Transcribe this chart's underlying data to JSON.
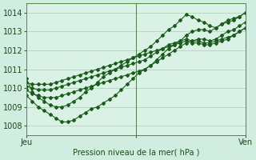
{
  "xlabel": "Pression niveau de la mer( hPa )",
  "ylim": [
    1007.5,
    1014.5
  ],
  "xlim": [
    0,
    48
  ],
  "bg_color": "#d0ede0",
  "plot_bg": "#daf2e6",
  "line_color": "#1a5c1a",
  "grid_color": "#a8ccb8",
  "yticks": [
    1008,
    1009,
    1010,
    1011,
    1012,
    1013,
    1014
  ],
  "xtick_pos": [
    0,
    24,
    48
  ],
  "xtick_labels": [
    "Jeu",
    "",
    "Ven"
  ],
  "vline_x": 24,
  "series": [
    [
      1010.5,
      1009.8,
      1009.5,
      1009.3,
      1009.1,
      1009.0,
      1009.0,
      1009.1,
      1009.3,
      1009.5,
      1009.8,
      1010.0,
      1010.3,
      1010.6,
      1010.8,
      1011.0,
      1011.2,
      1011.4,
      1011.6,
      1011.8,
      1012.0,
      1012.2,
      1012.5,
      1012.8,
      1013.1,
      1013.3,
      1013.6,
      1013.9,
      1013.8,
      1013.6,
      1013.5,
      1013.3,
      1013.2,
      1013.4,
      1013.6,
      1013.7,
      1013.8,
      1014.0
    ],
    [
      1009.6,
      1009.3,
      1009.0,
      1008.8,
      1008.6,
      1008.4,
      1008.2,
      1008.2,
      1008.3,
      1008.5,
      1008.7,
      1008.9,
      1009.0,
      1009.2,
      1009.4,
      1009.6,
      1009.9,
      1010.2,
      1010.5,
      1010.8,
      1011.0,
      1011.2,
      1011.5,
      1011.8,
      1012.1,
      1012.3,
      1012.5,
      1012.8,
      1013.0,
      1013.1,
      1013.1,
      1013.0,
      1013.2,
      1013.4,
      1013.5,
      1013.6,
      1013.8,
      1014.0
    ],
    [
      1009.9,
      1009.7,
      1009.6,
      1009.5,
      1009.5,
      1009.5,
      1009.6,
      1009.7,
      1009.8,
      1009.9,
      1010.0,
      1010.1,
      1010.2,
      1010.3,
      1010.4,
      1010.5,
      1010.6,
      1010.7,
      1010.8,
      1010.9,
      1011.0,
      1011.2,
      1011.4,
      1011.6,
      1011.8,
      1012.0,
      1012.2,
      1012.4,
      1012.5,
      1012.6,
      1012.6,
      1012.5,
      1012.6,
      1012.8,
      1013.0,
      1013.1,
      1013.3,
      1013.5
    ],
    [
      1010.1,
      1010.0,
      1009.9,
      1009.9,
      1009.9,
      1010.0,
      1010.1,
      1010.2,
      1010.3,
      1010.4,
      1010.5,
      1010.6,
      1010.7,
      1010.8,
      1010.9,
      1011.0,
      1011.1,
      1011.2,
      1011.3,
      1011.4,
      1011.5,
      1011.7,
      1011.9,
      1012.1,
      1012.3,
      1012.4,
      1012.5,
      1012.6,
      1012.5,
      1012.5,
      1012.4,
      1012.4,
      1012.5,
      1012.6,
      1012.7,
      1012.8,
      1013.0,
      1013.2
    ],
    [
      1010.3,
      1010.2,
      1010.2,
      1010.2,
      1010.2,
      1010.3,
      1010.4,
      1010.5,
      1010.6,
      1010.7,
      1010.8,
      1010.9,
      1011.0,
      1011.1,
      1011.2,
      1011.3,
      1011.4,
      1011.5,
      1011.6,
      1011.7,
      1011.8,
      1011.9,
      1012.0,
      1012.1,
      1012.2,
      1012.3,
      1012.4,
      1012.5,
      1012.4,
      1012.4,
      1012.3,
      1012.3,
      1012.4,
      1012.5,
      1012.6,
      1012.8,
      1013.0,
      1013.2
    ]
  ]
}
